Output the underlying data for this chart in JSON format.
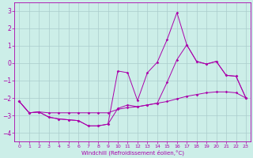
{
  "xlabel": "Windchill (Refroidissement éolien,°C)",
  "bg_color": "#cceee8",
  "grid_color": "#aacccc",
  "line_color": "#aa00aa",
  "xlim": [
    -0.5,
    23.5
  ],
  "ylim": [
    -4.5,
    3.5
  ],
  "yticks": [
    -4,
    -3,
    -2,
    -1,
    0,
    1,
    2,
    3
  ],
  "xticks": [
    0,
    1,
    2,
    3,
    4,
    5,
    6,
    7,
    8,
    9,
    10,
    11,
    12,
    13,
    14,
    15,
    16,
    17,
    18,
    19,
    20,
    21,
    22,
    23
  ],
  "series": {
    "line1_x": [
      0,
      1,
      2,
      3,
      4,
      5,
      6,
      7,
      8,
      9,
      10,
      11,
      12,
      13,
      14,
      15,
      16,
      17,
      18,
      19,
      20,
      21,
      22,
      23
    ],
    "line1_y": [
      -2.2,
      -2.85,
      -2.8,
      -2.85,
      -2.85,
      -2.85,
      -2.85,
      -2.85,
      -2.85,
      -2.85,
      -2.65,
      -2.55,
      -2.5,
      -2.4,
      -2.3,
      -2.2,
      -2.05,
      -1.9,
      -1.8,
      -1.7,
      -1.65,
      -1.65,
      -1.7,
      -2.0
    ],
    "line2_x": [
      0,
      1,
      2,
      3,
      4,
      5,
      6,
      7,
      8,
      9,
      10,
      11,
      12,
      13,
      14,
      15,
      16,
      17,
      18,
      19,
      20,
      21,
      22,
      23
    ],
    "line2_y": [
      -2.2,
      -2.85,
      -2.8,
      -3.1,
      -3.2,
      -3.25,
      -3.3,
      -3.6,
      -3.6,
      -3.5,
      -2.6,
      -2.4,
      -2.5,
      -2.4,
      -2.3,
      -1.1,
      0.2,
      1.05,
      0.1,
      -0.05,
      0.1,
      -0.7,
      -0.75,
      -2.0
    ],
    "line3_x": [
      0,
      1,
      2,
      3,
      4,
      5,
      6,
      7,
      8,
      9,
      10,
      11,
      12,
      13,
      14,
      15,
      16,
      17,
      18,
      19,
      20,
      21,
      22,
      23
    ],
    "line3_y": [
      -2.2,
      -2.85,
      -2.8,
      -3.1,
      -3.2,
      -3.25,
      -3.3,
      -3.6,
      -3.6,
      -3.5,
      -0.45,
      -0.55,
      -2.15,
      -0.55,
      0.05,
      1.35,
      2.9,
      1.05,
      0.1,
      -0.05,
      0.1,
      -0.7,
      -0.75,
      -2.0
    ]
  }
}
